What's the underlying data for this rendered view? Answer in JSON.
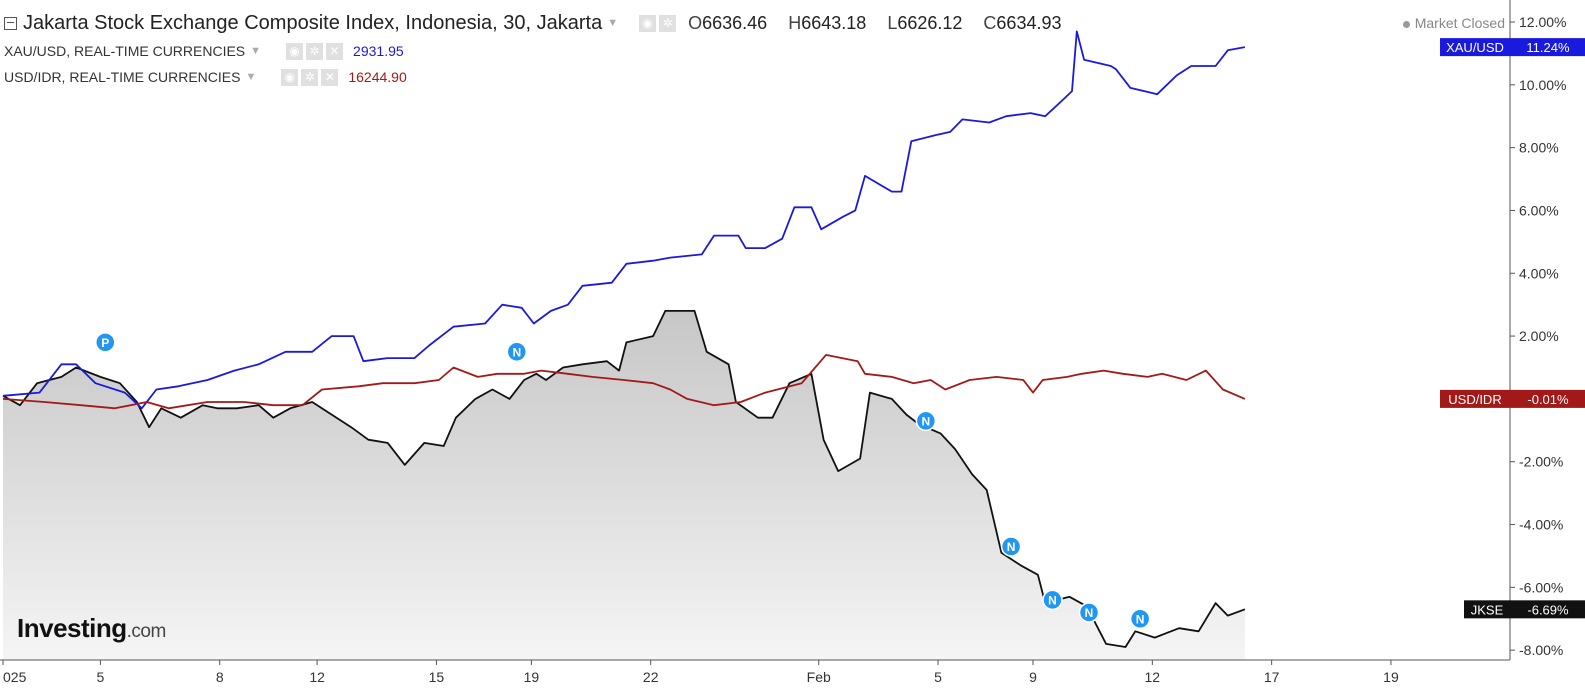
{
  "header": {
    "title": "Jakarta Stock Exchange Composite Index, Indonesia, 30, Jakarta",
    "ohlc": [
      {
        "key": "O",
        "value": "6636.46"
      },
      {
        "key": "H",
        "value": "6643.18"
      },
      {
        "key": "L",
        "value": "6626.12"
      },
      {
        "key": "C",
        "value": "6634.93"
      }
    ],
    "status": "Market Closed"
  },
  "legend": [
    {
      "label": "XAU/USD, REAL-TIME CURRENCIES",
      "value": "2931.95",
      "color": "#1a1adf"
    },
    {
      "label": "USD/IDR, REAL-TIME CURRENCIES",
      "value": "16244.90",
      "color": "#a31919"
    }
  ],
  "brand": {
    "name": "Investing",
    "suffix": ".com"
  },
  "chart_data": {
    "type": "line",
    "y_unit": "%",
    "ylim": [
      -9.3,
      12.7
    ],
    "y_ticks": [
      "12.00%",
      "10.00%",
      "8.00%",
      "6.00%",
      "4.00%",
      "2.00%",
      "-2.00%",
      "-4.00%",
      "-6.00%",
      "-8.00%"
    ],
    "y_tick_values": [
      12,
      10,
      8,
      6,
      4,
      2,
      -2,
      -4,
      -6,
      -8
    ],
    "x_range": [
      0,
      54
    ],
    "x_ticks": [
      {
        "label": "025",
        "x": 0
      },
      {
        "label": "5",
        "x": 4
      },
      {
        "label": "8",
        "x": 8.9
      },
      {
        "label": "12",
        "x": 12.9
      },
      {
        "label": "15",
        "x": 17.8
      },
      {
        "label": "19",
        "x": 21.7
      },
      {
        "label": "22",
        "x": 26.6
      },
      {
        "label": "Feb",
        "x": 33.5
      },
      {
        "label": "5",
        "x": 38.4
      },
      {
        "label": "9",
        "x": 42.3
      },
      {
        "label": "12",
        "x": 47.2
      },
      {
        "label": "17",
        "x": 52.1
      },
      {
        "label": "19",
        "x": 57
      }
    ],
    "series": [
      {
        "name": "XAU/USD",
        "tag": "XAU/USD",
        "last": "11.24%",
        "color": "#1a1adf",
        "fill": false,
        "points": [
          [
            0,
            0.1
          ],
          [
            1.5,
            0.2
          ],
          [
            2.4,
            1.1
          ],
          [
            3,
            1.1
          ],
          [
            3.8,
            0.5
          ],
          [
            5,
            0.2
          ],
          [
            5.7,
            -0.3
          ],
          [
            6.3,
            0.3
          ],
          [
            7.2,
            0.4
          ],
          [
            8.4,
            0.6
          ],
          [
            9.5,
            0.9
          ],
          [
            10.5,
            1.1
          ],
          [
            11.6,
            1.5
          ],
          [
            12.7,
            1.5
          ],
          [
            13.5,
            2.0
          ],
          [
            14.4,
            2.0
          ],
          [
            14.8,
            1.2
          ],
          [
            15.8,
            1.3
          ],
          [
            16.9,
            1.3
          ],
          [
            17.5,
            1.7
          ],
          [
            18.5,
            2.3
          ],
          [
            19.8,
            2.4
          ],
          [
            20.5,
            3.0
          ],
          [
            21.3,
            2.9
          ],
          [
            21.8,
            2.4
          ],
          [
            22.5,
            2.8
          ],
          [
            23.2,
            3.0
          ],
          [
            23.8,
            3.6
          ],
          [
            25,
            3.7
          ],
          [
            25.6,
            4.3
          ],
          [
            26.7,
            4.4
          ],
          [
            27.4,
            4.5
          ],
          [
            28.7,
            4.6
          ],
          [
            29.2,
            5.2
          ],
          [
            30.2,
            5.2
          ],
          [
            30.5,
            4.8
          ],
          [
            31.3,
            4.8
          ],
          [
            32,
            5.1
          ],
          [
            32.5,
            6.1
          ],
          [
            33.2,
            6.1
          ],
          [
            33.6,
            5.4
          ],
          [
            34.5,
            5.8
          ],
          [
            35,
            6.0
          ],
          [
            35.4,
            7.1
          ],
          [
            36.5,
            6.6
          ],
          [
            36.9,
            6.6
          ],
          [
            37.3,
            8.2
          ],
          [
            38.3,
            8.4
          ],
          [
            38.9,
            8.5
          ],
          [
            39.4,
            8.9
          ],
          [
            40.5,
            8.8
          ],
          [
            41.2,
            9.0
          ],
          [
            42.2,
            9.1
          ],
          [
            42.8,
            9.0
          ],
          [
            43.5,
            9.5
          ],
          [
            43.9,
            9.8
          ],
          [
            44.1,
            11.7
          ],
          [
            44.4,
            10.8
          ],
          [
            45.5,
            10.6
          ],
          [
            45.7,
            10.5
          ],
          [
            46.3,
            9.9
          ],
          [
            47.4,
            9.7
          ],
          [
            48.2,
            10.3
          ],
          [
            48.8,
            10.6
          ],
          [
            49.8,
            10.6
          ],
          [
            50.3,
            11.1
          ],
          [
            51,
            11.2
          ]
        ]
      },
      {
        "name": "USD/IDR",
        "tag": "USD/IDR",
        "last": "-0.01%",
        "color": "#a31919",
        "fill": false,
        "points": [
          [
            0,
            0.0
          ],
          [
            1.7,
            -0.1
          ],
          [
            3.2,
            -0.2
          ],
          [
            4.6,
            -0.3
          ],
          [
            5.9,
            -0.1
          ],
          [
            6.8,
            -0.3
          ],
          [
            8.4,
            -0.1
          ],
          [
            9.9,
            -0.1
          ],
          [
            11.1,
            -0.2
          ],
          [
            12.3,
            -0.2
          ],
          [
            13.1,
            0.3
          ],
          [
            14.6,
            0.4
          ],
          [
            15.6,
            0.5
          ],
          [
            16.9,
            0.5
          ],
          [
            17.9,
            0.6
          ],
          [
            18.5,
            1.0
          ],
          [
            19.5,
            0.7
          ],
          [
            20.3,
            0.8
          ],
          [
            21.4,
            0.8
          ],
          [
            22.1,
            0.9
          ],
          [
            23.2,
            0.8
          ],
          [
            24.2,
            0.7
          ],
          [
            25.5,
            0.6
          ],
          [
            26.7,
            0.5
          ],
          [
            27.4,
            0.3
          ],
          [
            28.1,
            0.0
          ],
          [
            29.2,
            -0.2
          ],
          [
            30.3,
            -0.1
          ],
          [
            31.3,
            0.2
          ],
          [
            32.8,
            0.5
          ],
          [
            33.8,
            1.4
          ],
          [
            35.1,
            1.2
          ],
          [
            35.4,
            0.8
          ],
          [
            36.5,
            0.7
          ],
          [
            37.4,
            0.5
          ],
          [
            38.1,
            0.6
          ],
          [
            38.7,
            0.3
          ],
          [
            39.7,
            0.6
          ],
          [
            40.8,
            0.7
          ],
          [
            41.9,
            0.6
          ],
          [
            42.3,
            0.2
          ],
          [
            42.7,
            0.6
          ],
          [
            43.7,
            0.7
          ],
          [
            44.3,
            0.8
          ],
          [
            45.2,
            0.9
          ],
          [
            46,
            0.8
          ],
          [
            47,
            0.7
          ],
          [
            47.6,
            0.8
          ],
          [
            48.6,
            0.6
          ],
          [
            49.4,
            0.9
          ],
          [
            50.1,
            0.3
          ],
          [
            51,
            0.0
          ]
        ]
      },
      {
        "name": "JKSE",
        "tag": "JKSE",
        "last": "-6.69%",
        "color": "#111111",
        "fill": true,
        "points": [
          [
            0,
            0.1
          ],
          [
            0.7,
            -0.2
          ],
          [
            1.4,
            0.5
          ],
          [
            2.4,
            0.7
          ],
          [
            3,
            1.0
          ],
          [
            4,
            0.7
          ],
          [
            4.8,
            0.5
          ],
          [
            5.5,
            -0.1
          ],
          [
            6,
            -0.9
          ],
          [
            6.5,
            -0.3
          ],
          [
            7.3,
            -0.6
          ],
          [
            8.2,
            -0.2
          ],
          [
            8.8,
            -0.3
          ],
          [
            9.6,
            -0.3
          ],
          [
            10.5,
            -0.2
          ],
          [
            11.1,
            -0.6
          ],
          [
            11.8,
            -0.3
          ],
          [
            12.7,
            -0.1
          ],
          [
            13.5,
            -0.5
          ],
          [
            14.3,
            -0.9
          ],
          [
            15,
            -1.3
          ],
          [
            15.8,
            -1.4
          ],
          [
            16.5,
            -2.1
          ],
          [
            17.3,
            -1.4
          ],
          [
            18.1,
            -1.5
          ],
          [
            18.6,
            -0.6
          ],
          [
            19.4,
            0.0
          ],
          [
            20.1,
            0.3
          ],
          [
            20.8,
            0.0
          ],
          [
            21.4,
            0.6
          ],
          [
            21.9,
            0.8
          ],
          [
            22.3,
            0.6
          ],
          [
            23,
            1.0
          ],
          [
            23.8,
            1.1
          ],
          [
            24.8,
            1.2
          ],
          [
            25.3,
            0.9
          ],
          [
            25.6,
            1.8
          ],
          [
            26.7,
            2.0
          ],
          [
            27.2,
            2.8
          ],
          [
            28.4,
            2.8
          ],
          [
            28.9,
            1.5
          ],
          [
            29.8,
            1.1
          ],
          [
            30.1,
            -0.1
          ],
          [
            31,
            -0.6
          ],
          [
            31.6,
            -0.6
          ],
          [
            32.3,
            0.5
          ],
          [
            33.2,
            0.8
          ],
          [
            33.7,
            -1.3
          ],
          [
            34.3,
            -2.3
          ],
          [
            35.2,
            -1.9
          ],
          [
            35.6,
            0.2
          ],
          [
            36.5,
            0.0
          ],
          [
            37.1,
            -0.5
          ],
          [
            37.6,
            -0.8
          ],
          [
            38.5,
            -1.1
          ],
          [
            39.1,
            -1.6
          ],
          [
            39.8,
            -2.4
          ],
          [
            40.4,
            -2.9
          ],
          [
            41,
            -4.9
          ],
          [
            41.8,
            -5.3
          ],
          [
            42.5,
            -5.6
          ],
          [
            42.8,
            -6.5
          ],
          [
            43.8,
            -6.3
          ],
          [
            44.5,
            -6.6
          ],
          [
            45.3,
            -7.8
          ],
          [
            46.1,
            -7.9
          ],
          [
            46.5,
            -7.4
          ],
          [
            47.3,
            -7.6
          ],
          [
            48.3,
            -7.3
          ],
          [
            49.1,
            -7.4
          ],
          [
            49.8,
            -6.5
          ],
          [
            50.3,
            -6.9
          ],
          [
            51,
            -6.7
          ]
        ]
      }
    ],
    "annotations": [
      {
        "label": "P",
        "x": 4.2,
        "y": 1.8
      },
      {
        "label": "N",
        "x": 21.1,
        "y": 1.5
      },
      {
        "label": "N",
        "x": 37.9,
        "y": -0.7
      },
      {
        "label": "N",
        "x": 41.4,
        "y": -4.7
      },
      {
        "label": "N",
        "x": 43.1,
        "y": -6.4
      },
      {
        "label": "N",
        "x": 44.6,
        "y": -6.8
      },
      {
        "label": "N",
        "x": 46.7,
        "y": -7.0
      }
    ]
  }
}
